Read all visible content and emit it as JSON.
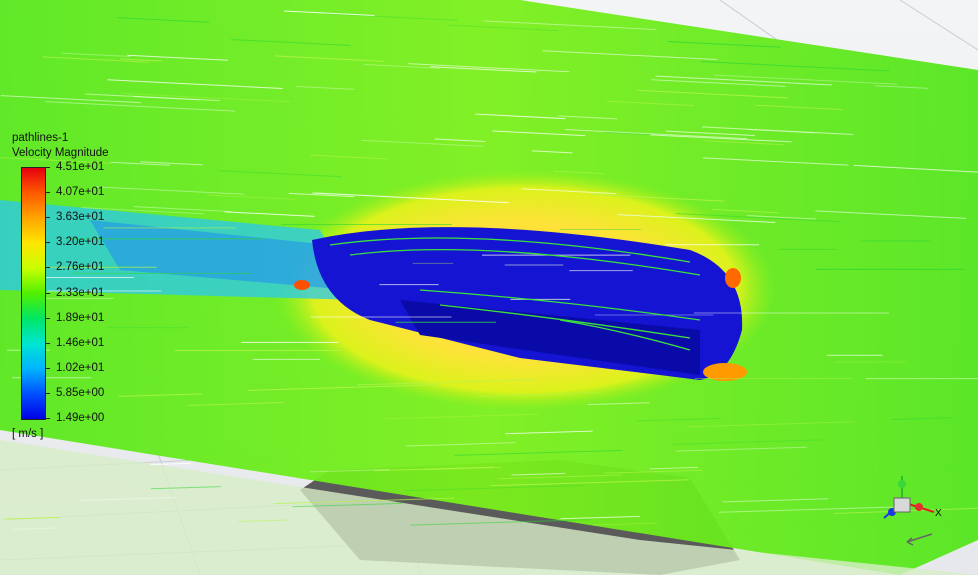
{
  "legend": {
    "title": "pathlines-1",
    "variable": "Velocity Magnitude",
    "units": "[ m/s ]",
    "ticks": [
      "4.51e+01",
      "4.07e+01",
      "3.63e+01",
      "3.20e+01",
      "2.76e+01",
      "2.33e+01",
      "1.89e+01",
      "1.46e+01",
      "1.02e+01",
      "5.85e+00",
      "1.49e+00"
    ]
  },
  "colors": {
    "max": "#e6000f",
    "high": "#ffa500",
    "mid_high": "#ffe600",
    "mid": "#50f000",
    "low_mid": "#00e6d2",
    "low": "#00b4ff",
    "min": "#0000e6",
    "background": "#eef0f3",
    "floor_shadow": "#5a5a5a"
  },
  "triad": {
    "x_axis_label": "X",
    "icons": [
      "axis-triad-icon",
      "rotate-arrow-icon"
    ]
  }
}
